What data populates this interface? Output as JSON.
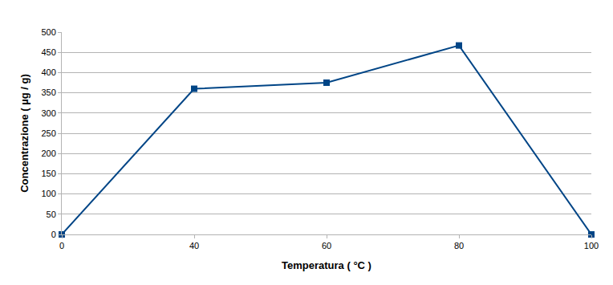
{
  "chart_data": {
    "type": "line",
    "x_label": "Temperatura ( °C )",
    "y_label": "Concentrazione ( µg / g)",
    "categories": [
      "0",
      "40",
      "60",
      "80",
      "100"
    ],
    "values": [
      0,
      360,
      375,
      467,
      0
    ],
    "color": "#004586",
    "marker": "square",
    "ylim": [
      0,
      500
    ],
    "yticks": [
      0,
      50,
      100,
      150,
      200,
      250,
      300,
      350,
      400,
      450,
      500
    ],
    "grid": true
  }
}
